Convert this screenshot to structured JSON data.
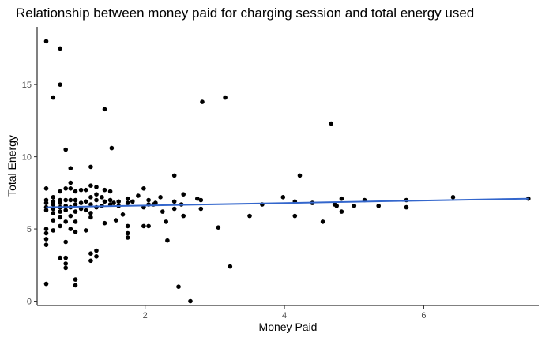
{
  "chart_data": {
    "type": "scatter",
    "title": "Relationship between money paid for charging session and total energy used",
    "xlabel": "Money Paid",
    "ylabel": "Total Energy",
    "xlim": [
      0.45,
      7.65
    ],
    "ylim": [
      -0.3,
      19.0
    ],
    "x_ticks": [
      2,
      4,
      6
    ],
    "y_ticks": [
      0,
      5,
      10,
      15
    ],
    "x_tick_labels": [
      "2",
      "4",
      "6"
    ],
    "y_tick_labels": [
      "0",
      "5",
      "10",
      "15"
    ],
    "grid": false,
    "legend": "none",
    "point_color": "#000000",
    "trend_color": "#3366cc",
    "trend_line": {
      "x": [
        0.58,
        7.5
      ],
      "y": [
        6.5,
        7.1
      ]
    },
    "points": [
      [
        0.58,
        18.0
      ],
      [
        0.78,
        17.5
      ],
      [
        0.78,
        15.0
      ],
      [
        0.68,
        14.1
      ],
      [
        1.42,
        13.3
      ],
      [
        2.82,
        13.8
      ],
      [
        3.15,
        14.1
      ],
      [
        4.67,
        12.3
      ],
      [
        0.86,
        10.5
      ],
      [
        1.52,
        10.6
      ],
      [
        0.58,
        7.8
      ],
      [
        0.58,
        7.0
      ],
      [
        0.58,
        6.8
      ],
      [
        0.58,
        6.5
      ],
      [
        0.58,
        6.3
      ],
      [
        0.58,
        5.0
      ],
      [
        0.58,
        4.7
      ],
      [
        0.58,
        4.3
      ],
      [
        0.58,
        3.9
      ],
      [
        0.58,
        1.2
      ],
      [
        0.68,
        7.2
      ],
      [
        0.68,
        6.9
      ],
      [
        0.68,
        6.7
      ],
      [
        0.68,
        6.4
      ],
      [
        0.68,
        6.1
      ],
      [
        0.68,
        5.6
      ],
      [
        0.68,
        4.9
      ],
      [
        0.78,
        7.6
      ],
      [
        0.78,
        7.0
      ],
      [
        0.78,
        6.8
      ],
      [
        0.78,
        6.5
      ],
      [
        0.78,
        6.2
      ],
      [
        0.78,
        5.8
      ],
      [
        0.78,
        5.2
      ],
      [
        0.78,
        3.0
      ],
      [
        0.86,
        7.8
      ],
      [
        0.86,
        7.0
      ],
      [
        0.86,
        6.6
      ],
      [
        0.86,
        6.3
      ],
      [
        0.86,
        5.5
      ],
      [
        0.86,
        4.1
      ],
      [
        0.86,
        3.0
      ],
      [
        0.86,
        2.6
      ],
      [
        0.86,
        2.3
      ],
      [
        0.93,
        9.2
      ],
      [
        0.93,
        8.2
      ],
      [
        0.93,
        7.8
      ],
      [
        0.93,
        7.0
      ],
      [
        0.93,
        6.5
      ],
      [
        0.93,
        5.9
      ],
      [
        0.93,
        5.0
      ],
      [
        1.0,
        7.6
      ],
      [
        1.0,
        7.0
      ],
      [
        1.0,
        6.7
      ],
      [
        1.0,
        6.2
      ],
      [
        1.0,
        5.5
      ],
      [
        1.0,
        4.8
      ],
      [
        1.0,
        1.5
      ],
      [
        1.0,
        1.1
      ],
      [
        1.08,
        7.7
      ],
      [
        1.08,
        6.8
      ],
      [
        1.08,
        6.4
      ],
      [
        1.15,
        7.7
      ],
      [
        1.15,
        6.9
      ],
      [
        1.15,
        6.3
      ],
      [
        1.15,
        4.9
      ],
      [
        1.22,
        9.3
      ],
      [
        1.22,
        8.0
      ],
      [
        1.22,
        7.2
      ],
      [
        1.22,
        6.7
      ],
      [
        1.22,
        6.1
      ],
      [
        1.22,
        5.8
      ],
      [
        1.22,
        3.3
      ],
      [
        1.22,
        2.8
      ],
      [
        1.3,
        7.9
      ],
      [
        1.3,
        7.4
      ],
      [
        1.3,
        7.0
      ],
      [
        1.3,
        6.5
      ],
      [
        1.3,
        3.5
      ],
      [
        1.3,
        3.1
      ],
      [
        1.38,
        7.2
      ],
      [
        1.38,
        6.6
      ],
      [
        1.42,
        7.7
      ],
      [
        1.42,
        6.9
      ],
      [
        1.42,
        5.4
      ],
      [
        1.5,
        7.6
      ],
      [
        1.5,
        7.0
      ],
      [
        1.5,
        6.7
      ],
      [
        1.55,
        6.8
      ],
      [
        1.58,
        5.6
      ],
      [
        1.62,
        6.9
      ],
      [
        1.62,
        6.6
      ],
      [
        1.68,
        6.0
      ],
      [
        1.75,
        7.1
      ],
      [
        1.75,
        6.8
      ],
      [
        1.75,
        5.2
      ],
      [
        1.75,
        4.7
      ],
      [
        1.75,
        4.4
      ],
      [
        1.82,
        6.9
      ],
      [
        1.9,
        7.3
      ],
      [
        1.98,
        7.8
      ],
      [
        1.98,
        6.5
      ],
      [
        1.98,
        5.2
      ],
      [
        2.05,
        7.0
      ],
      [
        2.05,
        6.7
      ],
      [
        2.05,
        5.2
      ],
      [
        2.12,
        6.7
      ],
      [
        2.15,
        6.8
      ],
      [
        2.22,
        7.2
      ],
      [
        2.25,
        6.2
      ],
      [
        2.3,
        5.5
      ],
      [
        2.32,
        4.2
      ],
      [
        2.42,
        8.7
      ],
      [
        2.42,
        6.9
      ],
      [
        2.42,
        6.4
      ],
      [
        2.48,
        1.0
      ],
      [
        2.52,
        6.7
      ],
      [
        2.55,
        7.4
      ],
      [
        2.55,
        5.9
      ],
      [
        2.65,
        0.0
      ],
      [
        2.75,
        7.1
      ],
      [
        2.8,
        7.0
      ],
      [
        2.8,
        6.4
      ],
      [
        3.05,
        5.1
      ],
      [
        3.22,
        2.4
      ],
      [
        3.5,
        5.9
      ],
      [
        3.68,
        6.7
      ],
      [
        3.98,
        7.2
      ],
      [
        4.15,
        6.9
      ],
      [
        4.15,
        5.9
      ],
      [
        4.22,
        8.7
      ],
      [
        4.4,
        6.8
      ],
      [
        4.55,
        5.5
      ],
      [
        4.72,
        6.7
      ],
      [
        4.75,
        6.6
      ],
      [
        4.82,
        6.2
      ],
      [
        4.82,
        7.1
      ],
      [
        5.0,
        6.6
      ],
      [
        5.15,
        7.0
      ],
      [
        5.35,
        6.6
      ],
      [
        5.75,
        7.0
      ],
      [
        5.75,
        6.5
      ],
      [
        6.42,
        7.2
      ],
      [
        7.5,
        7.1
      ]
    ]
  }
}
